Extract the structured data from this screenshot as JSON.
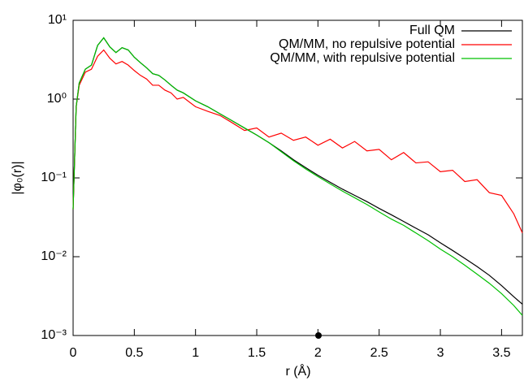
{
  "chart_data": {
    "type": "line",
    "xlabel": "r (Å)",
    "ylabel": "|φ₀(r)|",
    "x": [
      0,
      0.025,
      0.05,
      0.1,
      0.15,
      0.2,
      0.25,
      0.3,
      0.35,
      0.4,
      0.45,
      0.5,
      0.55,
      0.6,
      0.65,
      0.7,
      0.75,
      0.8,
      0.85,
      0.9,
      1.0,
      1.1,
      1.2,
      1.3,
      1.4,
      1.5,
      1.6,
      1.7,
      1.8,
      1.9,
      2.0,
      2.1,
      2.2,
      2.3,
      2.4,
      2.5,
      2.6,
      2.7,
      2.8,
      2.9,
      3.0,
      3.1,
      3.2,
      3.3,
      3.4,
      3.5,
      3.6,
      3.67
    ],
    "series": [
      {
        "name": "Full QM",
        "color": "#000000",
        "values": [
          0.04,
          0.8,
          1.6,
          2.4,
          2.7,
          4.8,
          6.0,
          4.6,
          3.9,
          4.5,
          4.2,
          3.4,
          2.9,
          2.5,
          2.1,
          2.0,
          1.75,
          1.5,
          1.3,
          1.2,
          0.95,
          0.8,
          0.65,
          0.53,
          0.43,
          0.35,
          0.28,
          0.22,
          0.17,
          0.135,
          0.108,
          0.088,
          0.072,
          0.06,
          0.05,
          0.041,
          0.034,
          0.028,
          0.023,
          0.019,
          0.015,
          0.012,
          0.0095,
          0.0075,
          0.0058,
          0.0043,
          0.0031,
          0.0025
        ]
      },
      {
        "name": "QM/MM, no repulsive potential",
        "color": "#ff0000",
        "values": [
          0.04,
          0.8,
          1.5,
          2.2,
          2.4,
          3.5,
          4.2,
          3.3,
          2.8,
          3.0,
          2.7,
          2.3,
          2.0,
          1.8,
          1.5,
          1.5,
          1.3,
          1.2,
          1.0,
          1.05,
          0.8,
          0.7,
          0.62,
          0.5,
          0.4,
          0.43,
          0.33,
          0.37,
          0.3,
          0.33,
          0.26,
          0.31,
          0.24,
          0.29,
          0.22,
          0.23,
          0.17,
          0.21,
          0.155,
          0.16,
          0.12,
          0.125,
          0.09,
          0.095,
          0.065,
          0.06,
          0.035,
          0.02
        ]
      },
      {
        "name": "QM/MM, with repulsive potential",
        "color": "#00c000",
        "values": [
          0.04,
          0.8,
          1.6,
          2.4,
          2.7,
          4.8,
          6.0,
          4.6,
          3.9,
          4.5,
          4.2,
          3.4,
          2.9,
          2.5,
          2.1,
          2.0,
          1.75,
          1.5,
          1.3,
          1.2,
          0.95,
          0.8,
          0.65,
          0.53,
          0.43,
          0.35,
          0.28,
          0.215,
          0.165,
          0.13,
          0.104,
          0.084,
          0.068,
          0.056,
          0.046,
          0.037,
          0.03,
          0.025,
          0.02,
          0.016,
          0.0125,
          0.01,
          0.0078,
          0.006,
          0.0046,
          0.0034,
          0.0024,
          0.0018
        ]
      }
    ],
    "xlim": [
      0,
      3.67
    ],
    "xticks": [
      0,
      0.5,
      1,
      1.5,
      2,
      2.5,
      3,
      3.5
    ],
    "ylim": [
      0.001,
      10
    ],
    "ylog": true,
    "yticks": [
      {
        "value": 0.001,
        "label": "10⁻³"
      },
      {
        "value": 0.01,
        "label": "10⁻²"
      },
      {
        "value": 0.1,
        "label": "10⁻¹"
      },
      {
        "value": 1,
        "label": "10⁰"
      },
      {
        "value": 10,
        "label": "10¹"
      }
    ],
    "legend": "top-right"
  }
}
